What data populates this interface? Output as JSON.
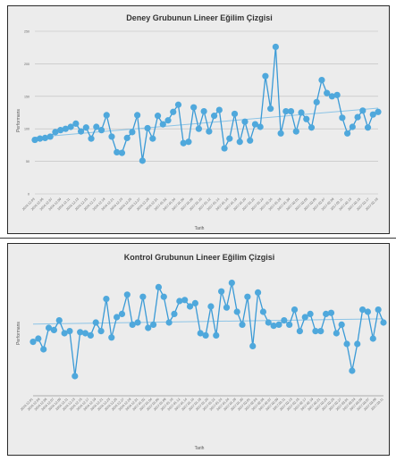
{
  "colors": {
    "line": "#3a9ad6",
    "marker": "#4fa8dc",
    "trend": "#8cc4e6",
    "grid": "#bdbdbd",
    "bg": "#ececec"
  },
  "chart_data": [
    {
      "type": "line",
      "title": "Deney Grubunun Lineer Eğilim Çizgisi",
      "xlabel": "Tarih",
      "ylabel": "Performans",
      "ylim": [
        0,
        250
      ],
      "yticks": [
        0,
        50,
        100,
        150,
        200,
        250
      ],
      "grid": true,
      "trendline": "linear",
      "x": [
        "2016.12.01",
        "2016.12.03",
        "2016.12.05",
        "2016.12.07",
        "2016.12.09",
        "2016.12.11",
        "2016.12.13",
        "2016.12.15",
        "2016.12.17",
        "2016.12.19",
        "2016.12.21",
        "2016.12.23",
        "2016.12.25",
        "2016.12.27",
        "2016.12.29",
        "2016.12.31",
        "2017.01.02",
        "2017.01.04",
        "2017.01.06",
        "2017.01.08",
        "2017.01.10",
        "2017.01.12",
        "2017.01.14",
        "2017.01.16",
        "2017.01.18",
        "2017.01.20",
        "2017.01.22",
        "2017.01.24",
        "2017.01.26",
        "2017.01.28",
        "2017.01.30",
        "2017.02.01",
        "2017.02.03",
        "2017.02.05",
        "2017.02.07",
        "2017.02.09",
        "2017.02.11",
        "2017.02.13",
        "2017.02.15",
        "2017.02.17",
        "2017.02.19",
        "2017.02.21",
        "2017.02.23",
        "2017.02.25",
        "2017.02.27",
        "2017.03.01",
        "2017.03.03",
        "2017.03.05",
        "2017.03.07",
        "2017.03.09",
        "2017.03.11",
        "2017.03.13",
        "2017.03.15",
        "2017.03.17",
        "2017.03.19",
        "2017.03.21",
        "2017.03.23",
        "2017.03.25",
        "2017.03.27",
        "2017.03.29",
        "2017.03.31",
        "2017.04.02",
        "2017.04.04",
        "2017.04.06",
        "2017.04.08",
        "2017.04.10",
        "2017.04.12",
        "2017.04.14"
      ],
      "series": [
        {
          "values": [
            83,
            85,
            86,
            88,
            95,
            98,
            100,
            103,
            108,
            96,
            102,
            85,
            103,
            98,
            121,
            88,
            64,
            63,
            86,
            95,
            121,
            51,
            101,
            85,
            120,
            107,
            113,
            126,
            137,
            78,
            80,
            133,
            100,
            127,
            96,
            120,
            129,
            70,
            85,
            123,
            80,
            111,
            82,
            107,
            103,
            181,
            131,
            226,
            93,
            127,
            127,
            96,
            125,
            115,
            102,
            141,
            175,
            155,
            150,
            152,
            117,
            93,
            103,
            118,
            128,
            102,
            122,
            126
          ]
        }
      ],
      "x_tick_labels": [
        "2016.12.03",
        "2016.12.05",
        "2016.12.07",
        "2016.12.09",
        "2016.12.11",
        "2016.12.13",
        "2016.12.15",
        "2016.12.17",
        "2016.12.19",
        "2016.12.21",
        "2016.12.23",
        "2016.12.25",
        "2016.12.27",
        "2016.12.29",
        "2016.12.31",
        "2017.01.02",
        "2017.01.04",
        "2017.01.06",
        "2017.01.08",
        "2017.01.10",
        "2017.01.12",
        "2017.01.14",
        "2017.01.16",
        "2017.01.18",
        "2017.01.20",
        "2017.01.22",
        "2017.01.24",
        "2017.01.26",
        "2017.01.28",
        "2017.01.30",
        "2017.02.01",
        "2017.02.03",
        "2017.02.05",
        "2017.02.07",
        "2017.02.09",
        "2017.02.11",
        "2017.02.13",
        "2017.02.15",
        "2017.02.17",
        "2017.02.19"
      ]
    },
    {
      "type": "line",
      "title": "Kontrol Grubunun Lineer Eğilim Çizgisi",
      "xlabel": "Tarih",
      "ylabel": "Performans",
      "grid": false,
      "trendline": "linear",
      "ylim": [
        0,
        250
      ],
      "series": [
        {
          "values": [
            92,
            95,
            85,
            105,
            103,
            112,
            100,
            102,
            60,
            101,
            100,
            98,
            110,
            102,
            132,
            96,
            115,
            118,
            136,
            108,
            110,
            134,
            105,
            108,
            143,
            134,
            110,
            118,
            130,
            131,
            125,
            128,
            100,
            98,
            125,
            98,
            139,
            124,
            147,
            120,
            108,
            134,
            88,
            138,
            120,
            110,
            107,
            108,
            112,
            108,
            122,
            102,
            115,
            118,
            102,
            102,
            118,
            119,
            100,
            108,
            90,
            65,
            90,
            122,
            120,
            95,
            122,
            110
          ]
        }
      ],
      "x_tick_labels": [
        "2016.12.01",
        "2016.12.03",
        "2016.12.05",
        "2016.12.07",
        "2016.12.09",
        "2016.12.11",
        "2016.12.13",
        "2016.12.15",
        "2016.12.17",
        "2016.12.19",
        "2016.12.21",
        "2016.12.23",
        "2016.12.25",
        "2016.12.27",
        "2016.12.29",
        "2016.12.31",
        "2017.01.02",
        "2017.01.04",
        "2017.01.06",
        "2017.01.08",
        "2017.01.10",
        "2017.01.12",
        "2017.01.14",
        "2017.01.16",
        "2017.01.18",
        "2017.01.20",
        "2017.01.22",
        "2017.01.24",
        "2017.01.26",
        "2017.01.28",
        "2017.01.30",
        "2017.02.01",
        "2017.02.03",
        "2017.02.05",
        "2017.02.07",
        "2017.02.09",
        "2017.02.11",
        "2017.02.13",
        "2017.02.15",
        "2017.02.17",
        "2017.02.19",
        "2017.02.21",
        "2017.02.23",
        "2017.02.25",
        "2017.02.27",
        "2017.03.01",
        "2017.03.03",
        "2017.03.05",
        "2017.03.07",
        "2017.03.09",
        "2017.03.11"
      ]
    }
  ]
}
